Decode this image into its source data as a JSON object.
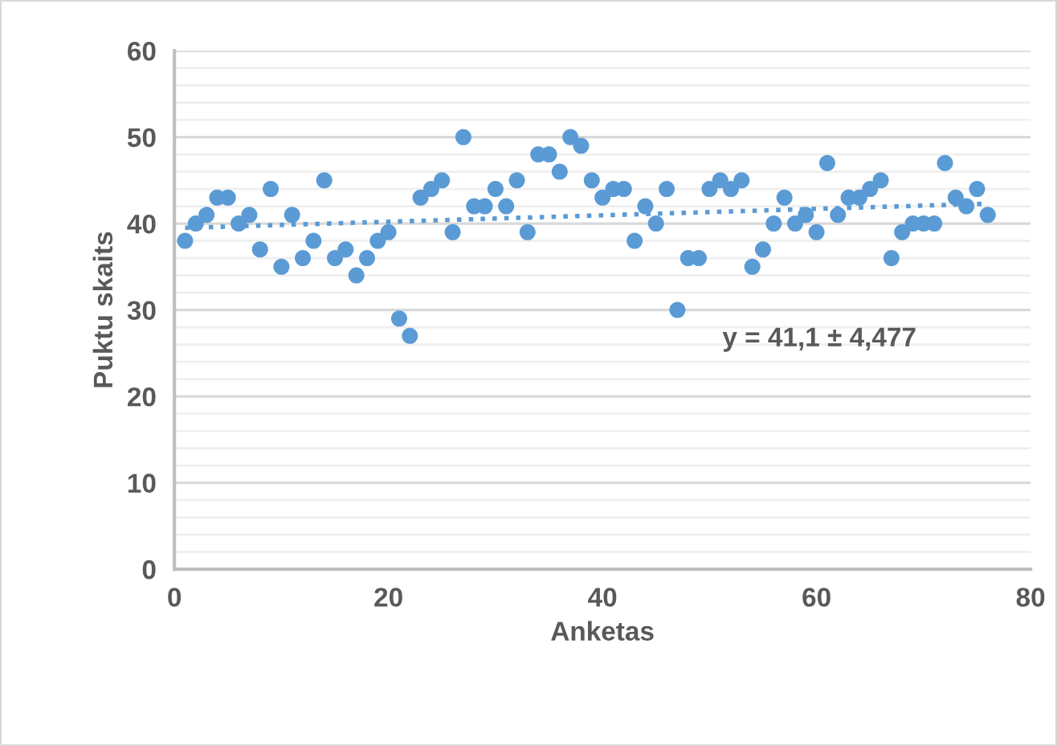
{
  "chart_data": {
    "type": "scatter",
    "xlabel": "Anketas",
    "ylabel": "Puktu skaits",
    "x": [
      1,
      2,
      3,
      4,
      5,
      6,
      7,
      8,
      9,
      10,
      11,
      12,
      13,
      14,
      15,
      16,
      17,
      18,
      19,
      20,
      21,
      22,
      23,
      24,
      25,
      26,
      27,
      28,
      29,
      30,
      31,
      32,
      33,
      34,
      35,
      36,
      37,
      38,
      39,
      40,
      41,
      42,
      43,
      44,
      45,
      46,
      47,
      48,
      49,
      50,
      51,
      52,
      53,
      54,
      55,
      56,
      57,
      58,
      59,
      60,
      61,
      62,
      63,
      64,
      65,
      66,
      67,
      68,
      69,
      70,
      71,
      72,
      73,
      74,
      75,
      76
    ],
    "series": [
      {
        "color": "#5b9bd5",
        "marker": "circle",
        "values": [
          38,
          40,
          41,
          43,
          43,
          40,
          41,
          37,
          44,
          35,
          41,
          36,
          38,
          45,
          36,
          37,
          34,
          36,
          38,
          39,
          29,
          27,
          43,
          44,
          45,
          39,
          50,
          42,
          42,
          44,
          42,
          45,
          39,
          48,
          48,
          46,
          50,
          49,
          45,
          43,
          44,
          44,
          38,
          42,
          40,
          44,
          30,
          36,
          36,
          44,
          45,
          44,
          45,
          35,
          37,
          40,
          43,
          40,
          41,
          39,
          47,
          41,
          43,
          43,
          44,
          45,
          36,
          39,
          40,
          40,
          40,
          47,
          43,
          42,
          44,
          41
        ]
      },
      {
        "type": "line",
        "color": "#5b9bd5",
        "line_style": "dotted",
        "x": [
          1,
          76
        ],
        "values": [
          39.5,
          42.3
        ]
      }
    ],
    "annotations": [
      "y = 41,1 ± 4,477"
    ],
    "xlim": [
      0,
      80
    ],
    "xticks": [
      0,
      20,
      40,
      60,
      80
    ],
    "ylim": [
      0,
      60
    ],
    "yticks": [
      0,
      10,
      20,
      30,
      40,
      50,
      60
    ],
    "grid": "y",
    "legend": false
  }
}
